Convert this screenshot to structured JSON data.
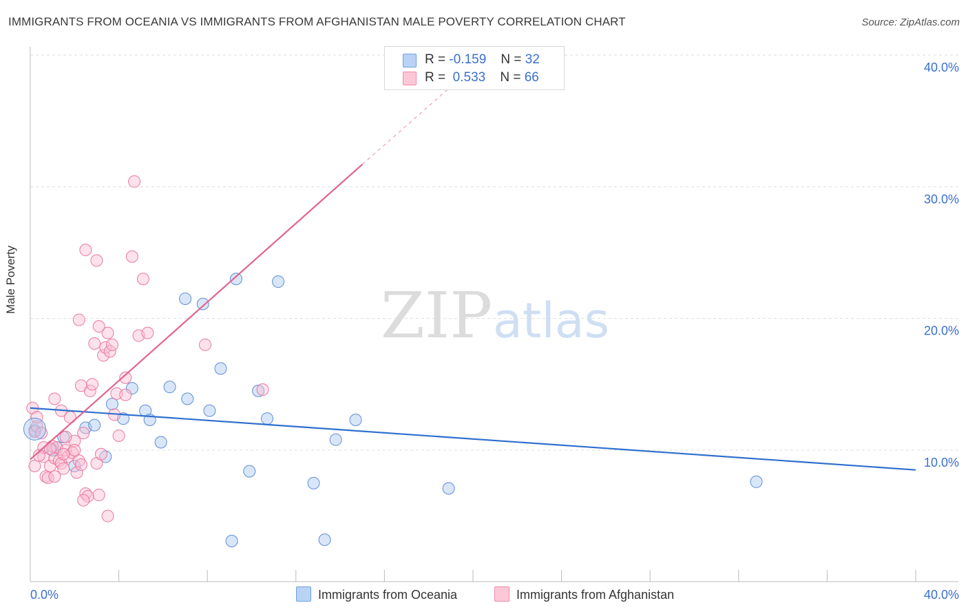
{
  "title": "IMMIGRANTS FROM OCEANIA VS IMMIGRANTS FROM AFGHANISTAN MALE POVERTY CORRELATION CHART",
  "source": "Source: ZipAtlas.com",
  "watermark": {
    "zip": "ZIP",
    "atlas": "atlas"
  },
  "legend_top": {
    "r_label": "R =",
    "n_label": "N =",
    "rows": [
      {
        "r": "-0.159",
        "n": "32",
        "color": "#b9d3f5",
        "border": "#6e9fe0"
      },
      {
        "r": "0.533",
        "n": "66",
        "color": "#fcc8d8",
        "border": "#ee8aaa"
      }
    ]
  },
  "legend_bottom": [
    {
      "label": "Immigrants from Oceania",
      "color": "#b9d3f5",
      "border": "#6e9fe0"
    },
    {
      "label": "Immigrants from Afghanistan",
      "color": "#fcc8d8",
      "border": "#ee8aaa"
    }
  ],
  "colors": {
    "oceania_fill": "rgba(170,200,240,0.45)",
    "oceania_stroke": "#5b8ed8",
    "oceania_line": "#2f6fce",
    "afghan_fill": "rgba(250,190,210,0.45)",
    "afghan_stroke": "#e8799d",
    "afghan_line": "#e0648e",
    "tick_text": "#3a6fd0",
    "grid": "#dddddd"
  },
  "chart_data": {
    "type": "scatter",
    "ylabel": "Male Poverty",
    "xlabel": "",
    "xlim": [
      0,
      40
    ],
    "ylim": [
      0,
      40
    ],
    "x_tick_labels": [
      {
        "value": 0,
        "label": "0.0%"
      },
      {
        "value": 40,
        "label": "40.0%"
      }
    ],
    "y_tick_labels": [
      {
        "value": 10,
        "label": "10.0%"
      },
      {
        "value": 20,
        "label": "20.0%"
      },
      {
        "value": 30,
        "label": "30.0%"
      },
      {
        "value": 40,
        "label": "40.0%"
      }
    ],
    "grid": true,
    "series": [
      {
        "name": "Immigrants from Oceania",
        "points": [
          [
            0.2,
            11.5
          ],
          [
            1.2,
            10.2
          ],
          [
            1.5,
            11
          ],
          [
            2.0,
            8.8
          ],
          [
            2.5,
            11.7
          ],
          [
            2.9,
            11.9
          ],
          [
            3.4,
            9.5
          ],
          [
            3.7,
            13.5
          ],
          [
            4.2,
            12.4
          ],
          [
            4.6,
            14.7
          ],
          [
            5.2,
            13
          ],
          [
            5.4,
            12.3
          ],
          [
            5.9,
            10.6
          ],
          [
            6.3,
            14.8
          ],
          [
            7.0,
            21.5
          ],
          [
            7.1,
            13.9
          ],
          [
            7.8,
            21.1
          ],
          [
            8.1,
            13
          ],
          [
            8.6,
            16.2
          ],
          [
            9.1,
            3.1
          ],
          [
            9.3,
            23
          ],
          [
            9.9,
            8.4
          ],
          [
            10.3,
            14.5
          ],
          [
            10.7,
            12.4
          ],
          [
            11.2,
            22.8
          ],
          [
            12.8,
            7.5
          ],
          [
            13.3,
            3.2
          ],
          [
            13.8,
            10.8
          ],
          [
            14.7,
            12.3
          ],
          [
            18.9,
            7.1
          ],
          [
            32.8,
            7.6
          ],
          [
            1.0,
            10.0
          ]
        ],
        "trend": {
          "x0": 0,
          "y0": 13.2,
          "x1": 40,
          "y1": 8.5
        }
      },
      {
        "name": "Immigrants from Afghanistan",
        "points": [
          [
            0.1,
            13.2
          ],
          [
            0.2,
            11.4
          ],
          [
            0.2,
            8.8
          ],
          [
            0.3,
            11.8
          ],
          [
            0.5,
            11.3
          ],
          [
            0.6,
            9.5
          ],
          [
            0.6,
            10.2
          ],
          [
            0.7,
            8.0
          ],
          [
            0.8,
            7.9
          ],
          [
            0.9,
            8.8
          ],
          [
            1.0,
            10.3
          ],
          [
            1.1,
            8.0
          ],
          [
            1.1,
            9.4
          ],
          [
            1.2,
            10.2
          ],
          [
            1.3,
            9.2
          ],
          [
            1.4,
            9.0
          ],
          [
            1.5,
            8.6
          ],
          [
            1.6,
            10.0
          ],
          [
            1.7,
            9.5
          ],
          [
            1.8,
            12.5
          ],
          [
            1.9,
            9.8
          ],
          [
            2.0,
            10.7
          ],
          [
            2.1,
            8.3
          ],
          [
            2.2,
            9.2
          ],
          [
            2.3,
            8.9
          ],
          [
            2.4,
            11.3
          ],
          [
            2.5,
            6.7
          ],
          [
            2.6,
            6.5
          ],
          [
            2.7,
            14.5
          ],
          [
            2.8,
            15.0
          ],
          [
            2.9,
            18.1
          ],
          [
            3.0,
            9.0
          ],
          [
            3.1,
            6.6
          ],
          [
            3.2,
            9.7
          ],
          [
            3.3,
            17.2
          ],
          [
            3.4,
            17.8
          ],
          [
            3.5,
            18.9
          ],
          [
            3.6,
            17.5
          ],
          [
            3.7,
            18.0
          ],
          [
            3.8,
            12.7
          ],
          [
            3.9,
            14.3
          ],
          [
            4.0,
            11.1
          ],
          [
            4.3,
            15.5
          ],
          [
            4.6,
            24.7
          ],
          [
            4.7,
            30.4
          ],
          [
            4.9,
            18.7
          ],
          [
            5.1,
            23.0
          ],
          [
            5.3,
            18.9
          ],
          [
            7.9,
            18.0
          ],
          [
            10.5,
            14.6
          ],
          [
            2.5,
            25.2
          ],
          [
            3.0,
            24.4
          ],
          [
            2.2,
            19.9
          ],
          [
            3.1,
            19.4
          ],
          [
            1.1,
            13.9
          ],
          [
            2.3,
            14.9
          ],
          [
            0.4,
            9.6
          ],
          [
            0.9,
            10.1
          ],
          [
            1.5,
            9.7
          ],
          [
            2.0,
            10.0
          ],
          [
            2.4,
            6.2
          ],
          [
            3.5,
            5.0
          ],
          [
            1.6,
            11.0
          ],
          [
            0.3,
            12.5
          ],
          [
            1.4,
            13.0
          ],
          [
            4.3,
            14.2
          ]
        ],
        "trend": {
          "x0": 0,
          "y0": 9.3,
          "x1": 15,
          "y1": 31.7
        },
        "trend_dashed": {
          "x0": 15,
          "y0": 31.7,
          "x1": 19,
          "y1": 37.6
        }
      }
    ]
  }
}
